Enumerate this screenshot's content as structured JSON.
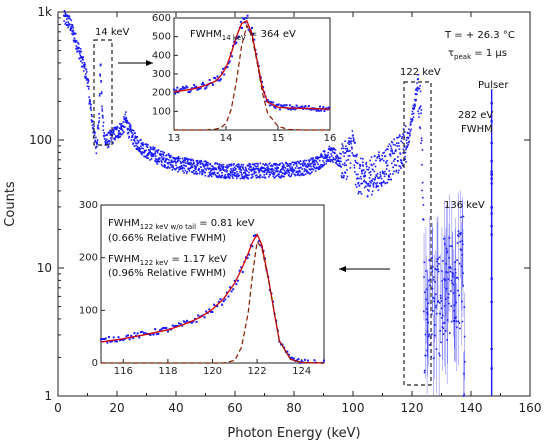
{
  "chart_data": {
    "type": "scatter",
    "title": "",
    "xlabel": "Photon Energy (keV)",
    "ylabel": "Counts",
    "xlim": [
      0,
      160
    ],
    "ylim": [
      1,
      1000
    ],
    "yscale": "log",
    "xticks": [
      "0",
      "20",
      "40",
      "60",
      "80",
      "100",
      "120",
      "140",
      "160"
    ],
    "yticks": [
      "1",
      "10",
      "100",
      "1k"
    ],
    "series_color": "#1a1aff",
    "spectrum_profile": {
      "x": [
        2,
        4,
        6,
        8,
        10,
        11,
        12,
        13,
        14,
        14.4,
        15,
        16,
        18,
        20,
        22,
        23,
        24,
        26,
        28,
        30,
        35,
        40,
        45,
        50,
        55,
        60,
        65,
        70,
        75,
        80,
        85,
        88,
        90,
        92,
        94,
        96,
        98,
        99,
        100,
        101,
        102,
        104,
        106,
        108,
        110,
        112,
        114,
        116,
        118,
        119,
        120,
        121,
        122,
        123,
        124,
        125
      ],
      "y": [
        900,
        820,
        600,
        430,
        300,
        180,
        120,
        90,
        150,
        420,
        160,
        95,
        105,
        115,
        125,
        145,
        120,
        100,
        90,
        82,
        72,
        65,
        62,
        60,
        58,
        57,
        57,
        58,
        58,
        59,
        62,
        66,
        72,
        78,
        74,
        68,
        70,
        84,
        90,
        60,
        52,
        50,
        52,
        56,
        60,
        66,
        72,
        80,
        95,
        110,
        140,
        200,
        270,
        160,
        20,
        8
      ]
    },
    "peaks": [
      {
        "label": "14 keV",
        "x": 14.4
      },
      {
        "label": "122 keV",
        "x": 122
      },
      {
        "label": "136 keV",
        "x": 136.5
      },
      {
        "label": "Pulser",
        "x": 147
      }
    ],
    "pulser_fwhm_label": "282 eV",
    "pulser_fwhm_unit": "FWHM",
    "conditions": {
      "temperature": "T = + 26.3 °C",
      "tau_main": "τ",
      "tau_sub": "peak",
      "tau_value": " = 1 µs"
    },
    "insets": [
      {
        "name": "inset-14kev",
        "xlim": [
          13,
          16
        ],
        "ylim": [
          0,
          600
        ],
        "xticks": [
          "13",
          "14",
          "15",
          "16"
        ],
        "yticks": [
          "100",
          "200",
          "300",
          "400",
          "500",
          "600"
        ],
        "fwhm_main": "FWHM",
        "fwhm_sub": "14 keV",
        "fwhm_value": " = 364 eV",
        "data_x": [
          13.0,
          13.2,
          13.4,
          13.6,
          13.8,
          13.9,
          14.0,
          14.1,
          14.2,
          14.3,
          14.4,
          14.5,
          14.6,
          14.7,
          14.8,
          15.0,
          15.2,
          15.5,
          15.8,
          16.0
        ],
        "data_y": [
          210,
          215,
          225,
          240,
          265,
          290,
          330,
          400,
          490,
          570,
          590,
          520,
          380,
          230,
          150,
          125,
          120,
          118,
          115,
          112
        ],
        "fit_y": [
          205,
          212,
          222,
          238,
          262,
          290,
          335,
          410,
          500,
          570,
          585,
          515,
          370,
          225,
          150,
          122,
          118,
          116,
          114,
          112
        ],
        "tail_y": [
          0,
          0,
          0,
          0,
          5,
          12,
          35,
          110,
          260,
          450,
          560,
          500,
          360,
          200,
          90,
          20,
          3,
          0,
          0,
          0
        ]
      },
      {
        "name": "inset-122kev",
        "xlim": [
          115,
          125
        ],
        "ylim": [
          0,
          300
        ],
        "xticks": [
          "116",
          "118",
          "120",
          "122",
          "124"
        ],
        "yticks": [
          "0",
          "100",
          "200",
          "300"
        ],
        "lines": [
          {
            "main": "FWHM",
            "sub": "122 keV w/o tail",
            "value": " = 0.81 keV"
          },
          {
            "main": "",
            "sub": "",
            "value": "(0.66% Relative FWHM)"
          },
          {
            "main": "FWHM",
            "sub": "122 keV",
            "value": " = 1.17 keV"
          },
          {
            "main": "",
            "sub": "",
            "value": "(0.96% Relative FWHM)"
          }
        ],
        "data_x": [
          115,
          116,
          117,
          118,
          118.5,
          119,
          119.5,
          120,
          120.5,
          121,
          121.3,
          121.6,
          121.8,
          122,
          122.2,
          122.5,
          122.8,
          123,
          123.5,
          124,
          125
        ],
        "data_y": [
          42,
          48,
          55,
          64,
          70,
          78,
          88,
          102,
          120,
          150,
          175,
          205,
          228,
          245,
          225,
          160,
          90,
          45,
          8,
          2,
          0
        ],
        "fit_y": [
          40,
          46,
          54,
          63,
          70,
          78,
          88,
          102,
          122,
          152,
          178,
          208,
          230,
          244,
          226,
          162,
          88,
          42,
          7,
          1,
          0
        ],
        "tail_y": [
          0,
          0,
          0,
          0,
          0,
          0,
          0,
          0,
          0,
          5,
          30,
          95,
          170,
          230,
          220,
          160,
          90,
          42,
          7,
          1,
          0
        ]
      }
    ]
  }
}
